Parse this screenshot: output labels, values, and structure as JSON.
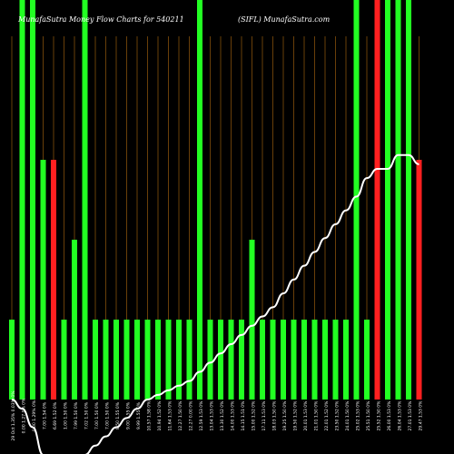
{
  "header": {
    "left_title": "MunafaSutra  Money Flow  Charts for 540211",
    "right_title": "(SIFL) MunafaSutra.com"
  },
  "colors": {
    "background": "#000000",
    "up_bar": "#22ff22",
    "down_bar": "#ff2020",
    "separator": "#b06a10",
    "trend_line": "#ffffff",
    "text": "#ffffff"
  },
  "chart_data": {
    "type": "bar",
    "ylim": [
      0,
      3
    ],
    "grid": false,
    "categories": [
      "29 Oct 1.35% 0.03% 0%",
      "0.00 1.27 0% 0%",
      "0.00 1.29% 0%",
      "7.00 1.54 0%",
      "6.69 1.52 0%",
      "1.00 1.50 0%",
      "7.99 1.50 0%",
      "7.02 1.50 0%",
      "7.00 1.50 0%",
      "7.00 1.50 0%",
      "8.50 1.55 0%",
      "9.00 1.55 0%",
      "9.99 1.55 0%",
      "10.57 1.58 0%",
      "10.94 1.52 0%",
      "11.64 1.53 0%",
      "12.27 1.50 0%",
      "12.27 0.00 0%",
      "12.59 1.53 0%",
      "13.04 1.53 0%",
      "13.30 1.52 0%",
      "14.00 1.53 0%",
      "14.15 1.51 0%",
      "15.00 1.52 0%",
      "17.11 1.53 0%",
      "18.03 1.50 0%",
      "19.25 1.50 0%",
      "19.50 1.52 0%",
      "20.01 1.53 0%",
      "21.01 1.50 0%",
      "22.01 1.52 0%",
      "23.50 1.52 0%",
      "24.01 1.50 0%",
      "25.02 1.53 0%",
      "25.51 1.50 0%",
      "25.52 1.50 0%",
      "26.00 1.53 0%",
      "26.04 1.53 0%",
      "27.01 1.53 0%",
      "29.47 1.53 0%"
    ],
    "values": [
      0.6,
      3.0,
      3.0,
      1.8,
      1.8,
      0.6,
      1.2,
      3.0,
      0.6,
      0.6,
      0.6,
      0.6,
      0.6,
      0.6,
      0.6,
      0.6,
      0.6,
      0.6,
      3.0,
      0.6,
      0.6,
      0.6,
      0.6,
      1.2,
      0.6,
      0.6,
      0.6,
      0.6,
      0.6,
      0.6,
      0.6,
      0.6,
      0.6,
      3.0,
      0.6,
      3.0,
      3.0,
      3.0,
      3.0,
      1.8
    ],
    "directions": [
      "up",
      "up",
      "up",
      "up",
      "down",
      "up",
      "up",
      "up",
      "up",
      "up",
      "up",
      "up",
      "up",
      "up",
      "up",
      "up",
      "up",
      "up",
      "up",
      "up",
      "up",
      "up",
      "up",
      "up",
      "up",
      "up",
      "up",
      "up",
      "up",
      "up",
      "up",
      "up",
      "up",
      "up",
      "up",
      "down",
      "up",
      "up",
      "up",
      "down"
    ],
    "trend": [
      0.0,
      -0.1,
      -0.3,
      -0.6,
      -0.8,
      -0.8,
      -0.7,
      -0.6,
      -0.5,
      -0.4,
      -0.3,
      -0.2,
      -0.1,
      0.0,
      0.05,
      0.1,
      0.15,
      0.2,
      0.3,
      0.4,
      0.5,
      0.6,
      0.7,
      0.8,
      0.9,
      1.0,
      1.15,
      1.3,
      1.45,
      1.6,
      1.75,
      1.9,
      2.05,
      2.2,
      2.4,
      2.5,
      2.5,
      2.65,
      2.65,
      2.55
    ]
  }
}
